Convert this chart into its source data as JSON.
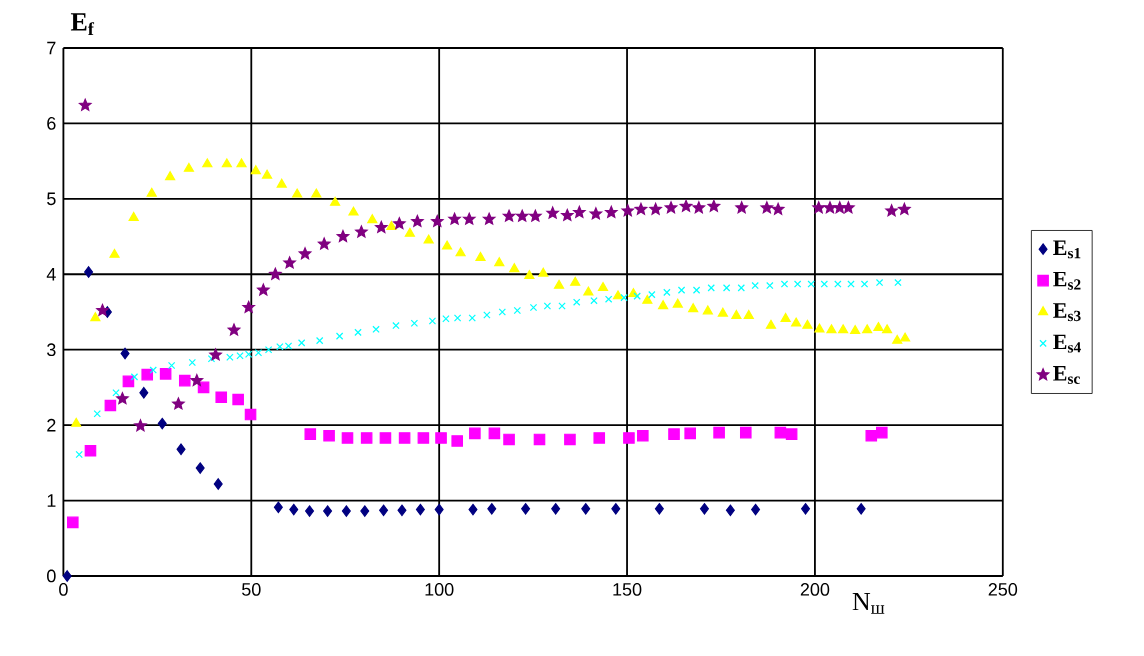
{
  "chart_data": {
    "type": "scatter",
    "xlabel": "N$_{ш}$",
    "ylabel": "E$_{f}$",
    "xlim": [
      0,
      250
    ],
    "ylim": [
      0,
      7
    ],
    "xticks": [
      0,
      50,
      100,
      150,
      200,
      250
    ],
    "yticks": [
      0,
      1,
      2,
      3,
      4,
      5,
      6,
      7
    ],
    "grid": true,
    "legend": "right",
    "series": [
      {
        "name": "E$_{s1}$",
        "color": "#000080",
        "marker": "diamond",
        "x": [
          1,
          6.7,
          11.7,
          16.4,
          21.4,
          26.3,
          31.3,
          36.4,
          41.2,
          57.2,
          61.3,
          65.5,
          70.3,
          75.3,
          80.2,
          85.2,
          90.1,
          95,
          100,
          109,
          114,
          123,
          131,
          139,
          147,
          158.6,
          170.6,
          177.5,
          184.2,
          197.5,
          212.3
        ],
        "values": [
          0,
          4.03,
          3.5,
          2.95,
          2.43,
          2.02,
          1.68,
          1.43,
          1.22,
          0.91,
          0.88,
          0.86,
          0.86,
          0.86,
          0.86,
          0.87,
          0.87,
          0.88,
          0.88,
          0.88,
          0.89,
          0.89,
          0.89,
          0.89,
          0.89,
          0.89,
          0.89,
          0.87,
          0.88,
          0.89,
          0.89
        ]
      },
      {
        "name": "E$_{s2}$",
        "color": "#ff00ff",
        "marker": "square",
        "x": [
          2.5,
          7.2,
          12.5,
          17.3,
          22.3,
          27.2,
          32.3,
          37.3,
          42,
          46.5,
          49.8,
          65.7,
          70.7,
          75.6,
          80.7,
          85.7,
          90.8,
          95.8,
          100.5,
          104.8,
          109.5,
          114.7,
          118.6,
          126.7,
          134.8,
          142.6,
          150.5,
          154.2,
          162.5,
          166.8,
          174.5,
          181.6,
          190.8,
          193.8,
          215,
          217.8
        ],
        "values": [
          0.71,
          1.66,
          2.26,
          2.58,
          2.67,
          2.68,
          2.59,
          2.5,
          2.37,
          2.34,
          2.14,
          1.88,
          1.86,
          1.83,
          1.83,
          1.83,
          1.83,
          1.83,
          1.83,
          1.79,
          1.89,
          1.89,
          1.81,
          1.81,
          1.81,
          1.83,
          1.83,
          1.86,
          1.88,
          1.89,
          1.9,
          1.9,
          1.9,
          1.88,
          1.86,
          1.9
        ]
      },
      {
        "name": "E$_{s3}$",
        "color": "#ffff00",
        "marker": "triangle",
        "x": [
          3.4,
          8.5,
          13.6,
          18.7,
          23.5,
          28.4,
          33.4,
          38.3,
          43.5,
          47.4,
          51.2,
          54.2,
          58.1,
          62.2,
          67.3,
          72.3,
          77.2,
          82.2,
          87.3,
          92.2,
          97.2,
          102.1,
          105.7,
          111,
          116,
          120,
          124,
          127.7,
          131.9,
          136.2,
          139.7,
          143.6,
          147.6,
          151.7,
          155.4,
          159.6,
          163.5,
          167.6,
          171.5,
          175.5,
          179.1,
          182.4,
          188.3,
          192.2,
          195,
          198,
          201.2,
          204.4,
          207.5,
          210.7,
          213.9,
          216.9,
          219.2,
          221.9,
          224
        ],
        "values": [
          2.02,
          3.42,
          4.26,
          4.75,
          5.07,
          5.29,
          5.4,
          5.46,
          5.46,
          5.46,
          5.37,
          5.31,
          5.19,
          5.06,
          5.06,
          4.95,
          4.82,
          4.72,
          4.63,
          4.54,
          4.45,
          4.37,
          4.28,
          4.22,
          4.15,
          4.07,
          3.98,
          4.01,
          3.85,
          3.89,
          3.76,
          3.82,
          3.71,
          3.74,
          3.65,
          3.58,
          3.6,
          3.54,
          3.51,
          3.48,
          3.45,
          3.45,
          3.32,
          3.41,
          3.35,
          3.32,
          3.27,
          3.26,
          3.26,
          3.25,
          3.26,
          3.29,
          3.26,
          3.12,
          3.15
        ]
      },
      {
        "name": "E$_{s4}$",
        "color": "#00ffff",
        "marker": "cross",
        "x": [
          4.2,
          9,
          14,
          18.9,
          23.9,
          28.8,
          34.3,
          39.4,
          44.3,
          47,
          49.3,
          51.9,
          54.6,
          57.6,
          59.9,
          63.4,
          68.2,
          73.5,
          78.4,
          83.2,
          88.5,
          93.4,
          98.2,
          101.8,
          104.9,
          108.8,
          112.7,
          116.8,
          120.8,
          125.1,
          128.8,
          132.7,
          136.6,
          141.2,
          145.1,
          149.2,
          152.7,
          156.6,
          160.6,
          164.5,
          168.5,
          172.4,
          176.5,
          180.4,
          184.1,
          188,
          191.9,
          195.4,
          199,
          202.5,
          206.1,
          209.6,
          213.2,
          217.2,
          222.1
        ],
        "values": [
          1.61,
          2.15,
          2.43,
          2.64,
          2.73,
          2.79,
          2.83,
          2.88,
          2.9,
          2.92,
          2.94,
          2.96,
          3,
          3.04,
          3.05,
          3.09,
          3.12,
          3.18,
          3.23,
          3.27,
          3.32,
          3.35,
          3.38,
          3.41,
          3.42,
          3.42,
          3.46,
          3.5,
          3.52,
          3.56,
          3.58,
          3.58,
          3.63,
          3.65,
          3.67,
          3.69,
          3.71,
          3.73,
          3.76,
          3.79,
          3.79,
          3.82,
          3.82,
          3.82,
          3.85,
          3.85,
          3.87,
          3.87,
          3.87,
          3.87,
          3.87,
          3.87,
          3.87,
          3.89,
          3.89
        ]
      },
      {
        "name": "E$_{sc}$",
        "color": "#800080",
        "marker": "star",
        "x": [
          5.8,
          10.4,
          15.7,
          20.5,
          30.6,
          35.5,
          40.5,
          45.4,
          49.3,
          53.2,
          56.4,
          60.2,
          64.3,
          69.4,
          74.4,
          79.3,
          84.6,
          89.4,
          94.2,
          99.5,
          104.1,
          108,
          113.3,
          118.6,
          122.1,
          125.6,
          130.2,
          134.1,
          137.3,
          141.7,
          145.8,
          150.2,
          153.7,
          157.6,
          161.7,
          165.7,
          169.1,
          173.1,
          180.5,
          187.2,
          190.2,
          201,
          204,
          206.6,
          208.9,
          220.4,
          223.8
        ],
        "values": [
          6.24,
          3.52,
          2.35,
          1.99,
          2.28,
          2.59,
          2.93,
          3.26,
          3.56,
          3.79,
          4,
          4.15,
          4.27,
          4.4,
          4.5,
          4.56,
          4.62,
          4.67,
          4.7,
          4.7,
          4.73,
          4.73,
          4.73,
          4.77,
          4.77,
          4.77,
          4.81,
          4.78,
          4.82,
          4.8,
          4.82,
          4.84,
          4.86,
          4.86,
          4.88,
          4.9,
          4.88,
          4.9,
          4.88,
          4.88,
          4.86,
          4.88,
          4.88,
          4.88,
          4.88,
          4.84,
          4.86
        ]
      }
    ]
  }
}
